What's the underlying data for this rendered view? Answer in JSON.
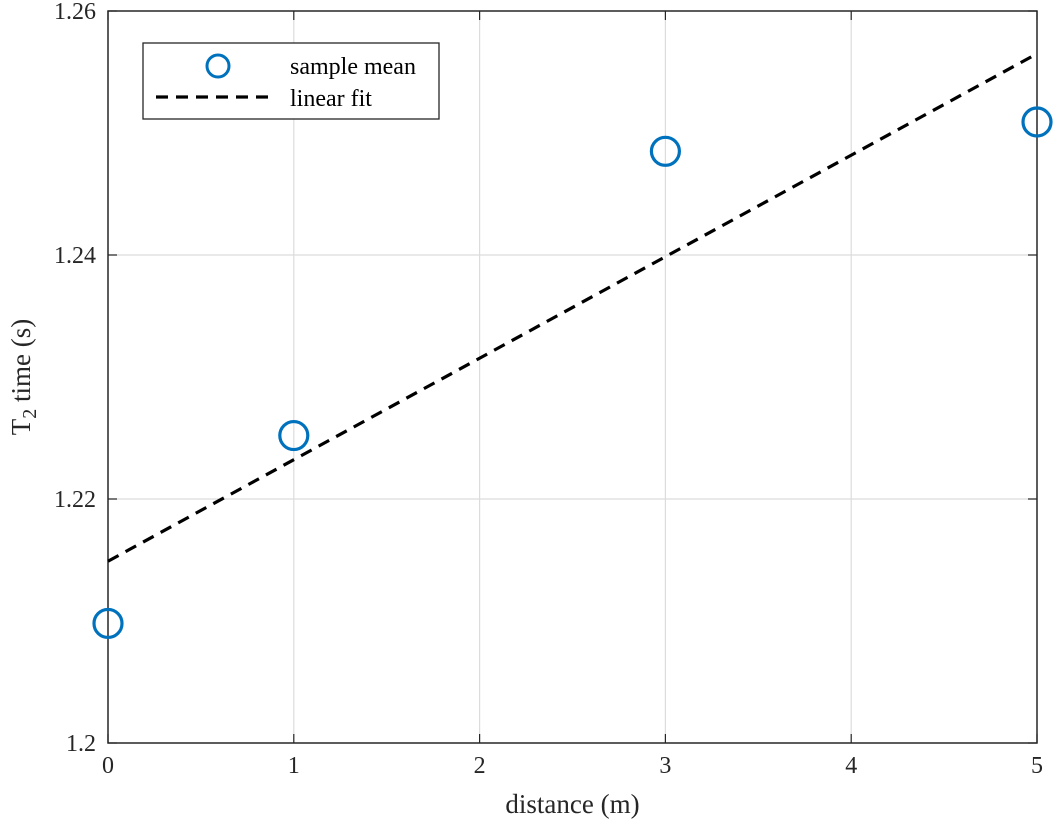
{
  "chart_data": {
    "type": "scatter",
    "title": "",
    "xlabel": "distance (m)",
    "ylabel": {
      "base": "T",
      "subscript": "2",
      "rest": " time (s)"
    },
    "xlim": [
      0,
      5
    ],
    "ylim": [
      1.2,
      1.26
    ],
    "x_ticks": [
      0,
      1,
      2,
      3,
      4,
      5
    ],
    "x_tick_labels": [
      "0",
      "1",
      "2",
      "3",
      "4",
      "5"
    ],
    "y_ticks": [
      1.2,
      1.22,
      1.24,
      1.26
    ],
    "y_tick_labels": [
      "1.2",
      "1.22",
      "1.24",
      "1.26"
    ],
    "grid": true,
    "legend_position": "top-left",
    "series": [
      {
        "name": "sample mean",
        "type": "scatter",
        "marker": "open-circle",
        "color": "#0072BD",
        "x": [
          0,
          1,
          3,
          5
        ],
        "y": [
          1.2098,
          1.2252,
          1.2485,
          1.2509
        ]
      },
      {
        "name": "linear fit",
        "type": "line",
        "style": "dashed",
        "color": "#000000",
        "x": [
          0,
          5
        ],
        "y": [
          1.2149,
          1.2565
        ]
      }
    ]
  }
}
